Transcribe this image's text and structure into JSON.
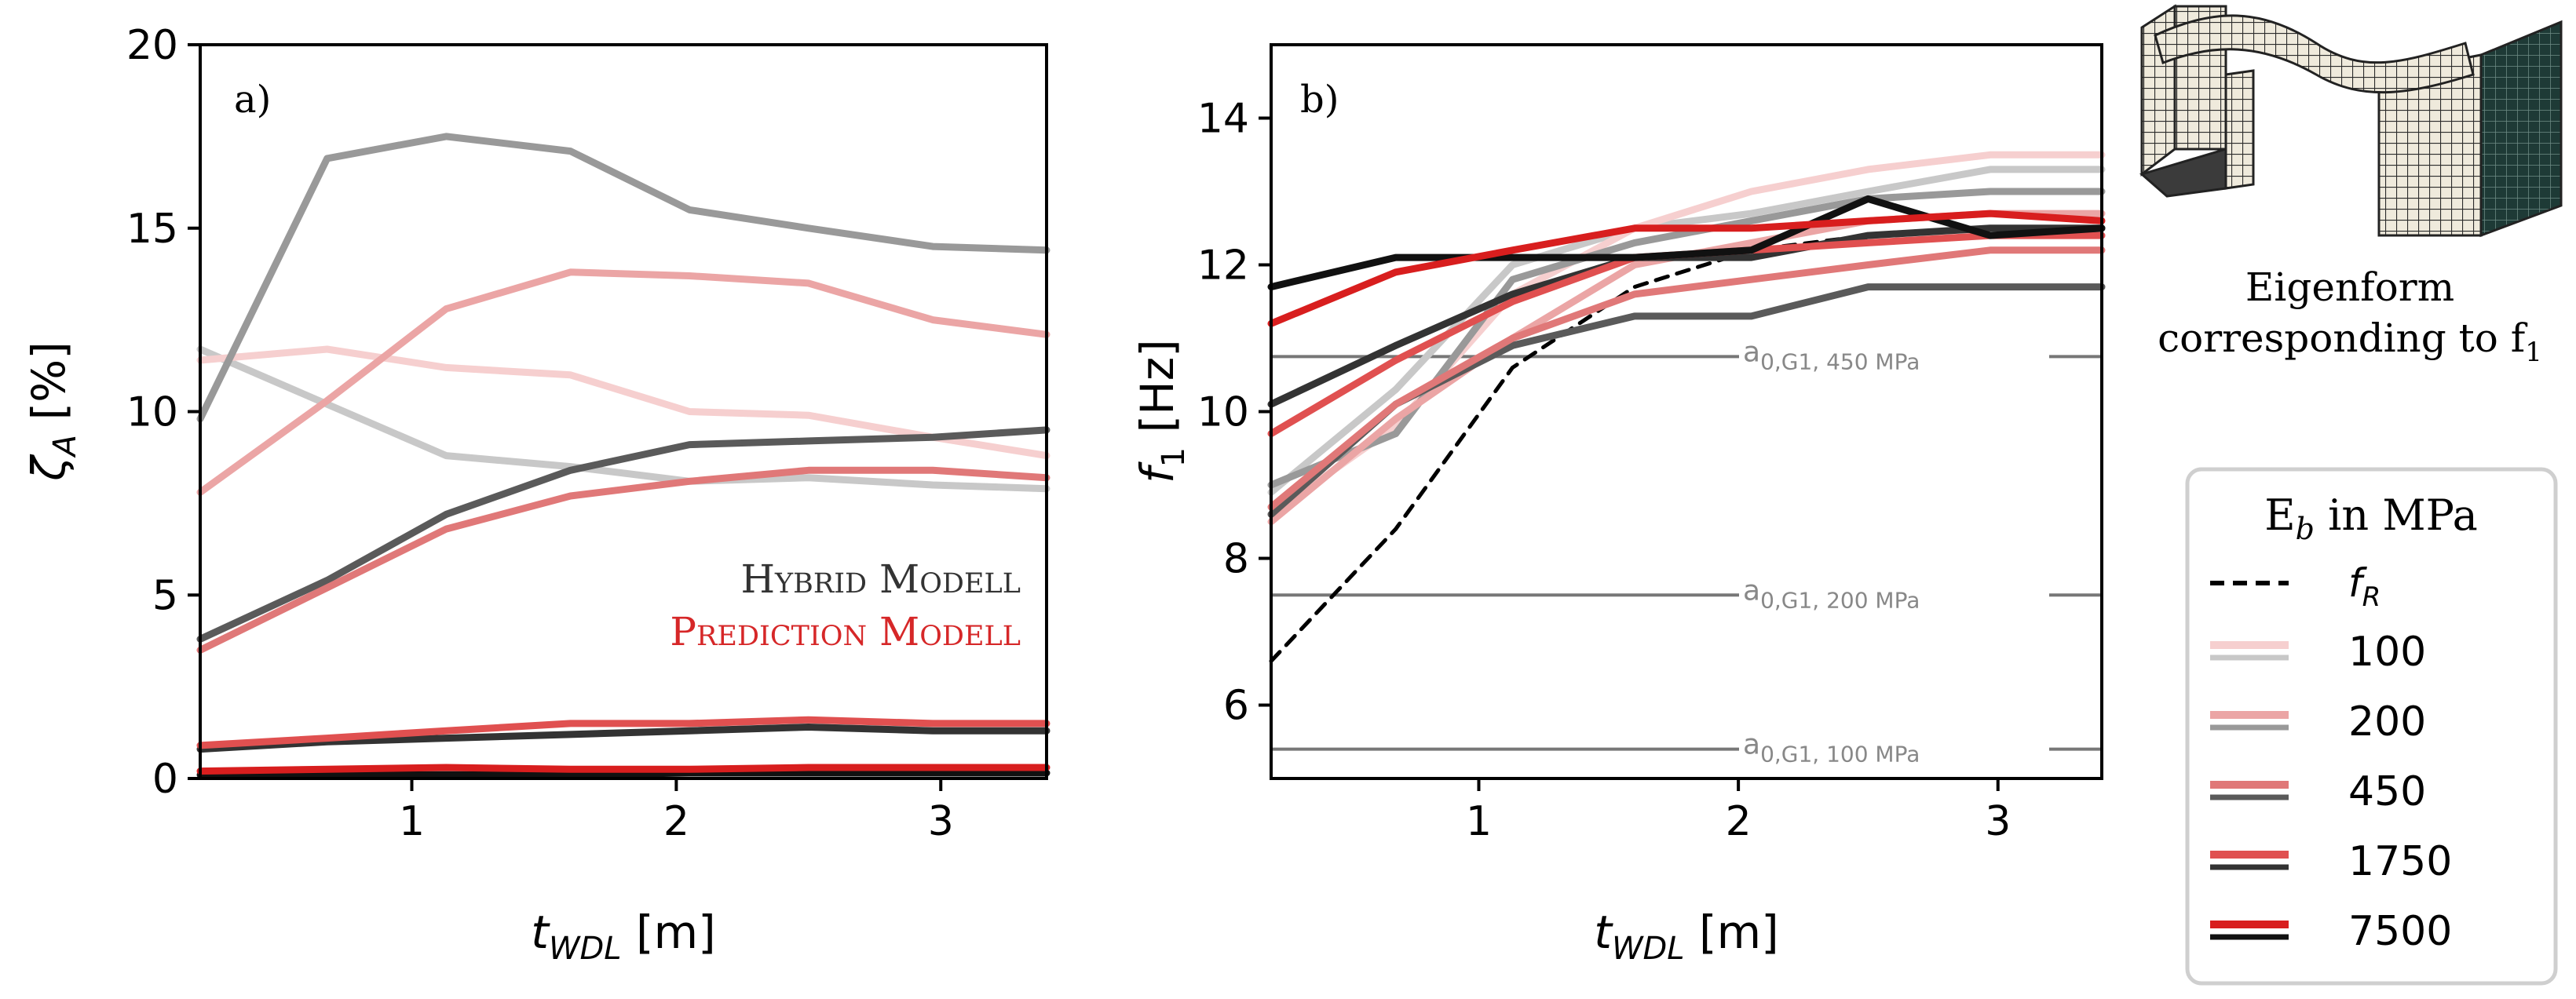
{
  "chart_data": [
    {
      "type": "line",
      "panel_label": "a)",
      "ylabel_symbol": "ζ",
      "ylabel_sub": "A",
      "ylabel_unit": " [%]",
      "xlabel_symbol": "t",
      "xlabel_sub": "WDL",
      "xlabel_unit": " [m]",
      "xlim": [
        0.2,
        3.4
      ],
      "ylim": [
        0,
        20
      ],
      "xticks": [
        1,
        2,
        3
      ],
      "yticks": [
        0,
        5,
        10,
        15,
        20
      ],
      "annotations": [
        {
          "text": "Hybrid Modell",
          "color": "#333333"
        },
        {
          "text": "Prediction Modell",
          "color": "#d62728"
        }
      ],
      "x": [
        0.2,
        0.68,
        1.13,
        1.6,
        2.05,
        2.5,
        2.97,
        3.4
      ],
      "series": [
        {
          "name": "Hybrid 100",
          "color": "#c8c8c8",
          "values": [
            11.7,
            10.2,
            8.8,
            8.5,
            8.1,
            8.2,
            8.0,
            7.9
          ]
        },
        {
          "name": "Prediction 100",
          "color": "#f6cfcf",
          "values": [
            11.4,
            11.7,
            11.2,
            11.0,
            10.0,
            9.9,
            9.3,
            8.8
          ]
        },
        {
          "name": "Hybrid 200",
          "color": "#999999",
          "values": [
            9.8,
            16.9,
            17.5,
            17.1,
            15.5,
            15.0,
            14.5,
            14.4
          ]
        },
        {
          "name": "Prediction 200",
          "color": "#eba5a5",
          "values": [
            7.8,
            10.3,
            12.8,
            13.8,
            13.7,
            13.5,
            12.5,
            12.1
          ]
        },
        {
          "name": "Hybrid 450",
          "color": "#5a5a5a",
          "values": [
            3.8,
            5.4,
            7.2,
            8.4,
            9.1,
            9.2,
            9.3,
            9.5
          ]
        },
        {
          "name": "Prediction 450",
          "color": "#e07878",
          "values": [
            3.5,
            5.2,
            6.8,
            7.7,
            8.1,
            8.4,
            8.4,
            8.2
          ]
        },
        {
          "name": "Hybrid 1750",
          "color": "#333333",
          "values": [
            0.8,
            1.0,
            1.1,
            1.2,
            1.3,
            1.4,
            1.3,
            1.3
          ]
        },
        {
          "name": "Prediction 1750",
          "color": "#e05050",
          "values": [
            0.9,
            1.1,
            1.3,
            1.5,
            1.5,
            1.6,
            1.5,
            1.5
          ]
        },
        {
          "name": "Hybrid 7500",
          "color": "#111111",
          "values": [
            0.1,
            0.1,
            0.1,
            0.1,
            0.15,
            0.15,
            0.15,
            0.15
          ]
        },
        {
          "name": "Prediction 7500",
          "color": "#d81e1e",
          "values": [
            0.2,
            0.25,
            0.3,
            0.25,
            0.25,
            0.3,
            0.3,
            0.3
          ]
        }
      ]
    },
    {
      "type": "line",
      "panel_label": "b)",
      "ylabel_symbol": "f",
      "ylabel_sub": "1",
      "ylabel_unit": " [Hz]",
      "xlabel_symbol": "t",
      "xlabel_sub": "WDL",
      "xlabel_unit": " [m]",
      "xlim": [
        0.2,
        3.4
      ],
      "ylim": [
        5,
        15
      ],
      "xticks": [
        1,
        2,
        3
      ],
      "yticks": [
        6,
        8,
        10,
        12,
        14
      ],
      "reference_lines": [
        {
          "label_main": "a",
          "label_sub": "0,G1, 450 MPa",
          "value": 10.75,
          "color": "#777777"
        },
        {
          "label_main": "a",
          "label_sub": "0,G1, 200 MPa",
          "value": 7.5,
          "color": "#777777"
        },
        {
          "label_main": "a",
          "label_sub": "0,G1, 100 MPa",
          "value": 5.4,
          "color": "#777777"
        }
      ],
      "x": [
        0.2,
        0.68,
        1.13,
        1.6,
        2.05,
        2.5,
        2.97,
        3.4
      ],
      "series": [
        {
          "name": "f_R",
          "color": "#000000",
          "dashed": true,
          "values": [
            6.6,
            8.4,
            10.6,
            11.7,
            12.2,
            12.4,
            12.5,
            12.5
          ]
        },
        {
          "name": "Hybrid 100",
          "color": "#c8c8c8",
          "values": [
            8.9,
            10.3,
            12.0,
            12.5,
            12.7,
            13.0,
            13.3,
            13.3
          ]
        },
        {
          "name": "Prediction 100",
          "color": "#f6cfcf",
          "values": [
            8.6,
            9.8,
            11.6,
            12.5,
            13.0,
            13.3,
            13.5,
            13.5
          ]
        },
        {
          "name": "Hybrid 200",
          "color": "#999999",
          "values": [
            9.0,
            9.7,
            11.8,
            12.3,
            12.6,
            12.9,
            13.0,
            13.0
          ]
        },
        {
          "name": "Prediction 200",
          "color": "#eba5a5",
          "values": [
            8.5,
            9.9,
            11.0,
            12.0,
            12.3,
            12.6,
            12.7,
            12.7
          ]
        },
        {
          "name": "Hybrid 450",
          "color": "#5a5a5a",
          "values": [
            8.6,
            10.1,
            10.9,
            11.3,
            11.3,
            11.7,
            11.7,
            11.7
          ]
        },
        {
          "name": "Prediction 450",
          "color": "#e07878",
          "values": [
            8.7,
            10.1,
            11.0,
            11.6,
            11.8,
            12.0,
            12.2,
            12.2
          ]
        },
        {
          "name": "Hybrid 1750",
          "color": "#333333",
          "values": [
            10.1,
            10.9,
            11.6,
            12.1,
            12.1,
            12.4,
            12.5,
            12.5
          ]
        },
        {
          "name": "Prediction 1750",
          "color": "#e05050",
          "values": [
            9.7,
            10.7,
            11.5,
            12.1,
            12.2,
            12.3,
            12.4,
            12.4
          ]
        },
        {
          "name": "Hybrid 7500",
          "color": "#111111",
          "values": [
            11.7,
            12.1,
            12.1,
            12.1,
            12.2,
            12.9,
            12.4,
            12.5
          ]
        },
        {
          "name": "Prediction 7500",
          "color": "#d81e1e",
          "values": [
            11.2,
            11.9,
            12.2,
            12.5,
            12.5,
            12.6,
            12.7,
            12.6
          ]
        }
      ]
    }
  ],
  "eigenform_caption_line1": "Eigenform",
  "eigenform_caption_line2": "corresponding to f",
  "eigenform_caption_sub": "1",
  "legend": {
    "title_main": "E",
    "title_sub": "b",
    "title_rest": " in MPa",
    "fr_label_main": "f",
    "fr_label_sub": "R",
    "entries": [
      {
        "label": "100",
        "pred_color": "#f6cfcf",
        "hyb_color": "#c8c8c8"
      },
      {
        "label": "200",
        "pred_color": "#eba5a5",
        "hyb_color": "#999999"
      },
      {
        "label": "450",
        "pred_color": "#e07878",
        "hyb_color": "#5a5a5a"
      },
      {
        "label": "1750",
        "pred_color": "#e05050",
        "hyb_color": "#333333"
      },
      {
        "label": "7500",
        "pred_color": "#d81e1e",
        "hyb_color": "#111111"
      }
    ]
  }
}
